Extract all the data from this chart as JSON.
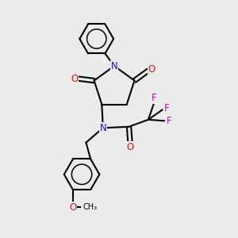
{
  "bg_color": "#ebebeb",
  "atom_colors": {
    "N": "#1010dd",
    "O": "#dd1010",
    "F": "#cc00cc",
    "C": "#000000"
  },
  "font_size_atom": 8.5,
  "font_size_small": 7.0
}
